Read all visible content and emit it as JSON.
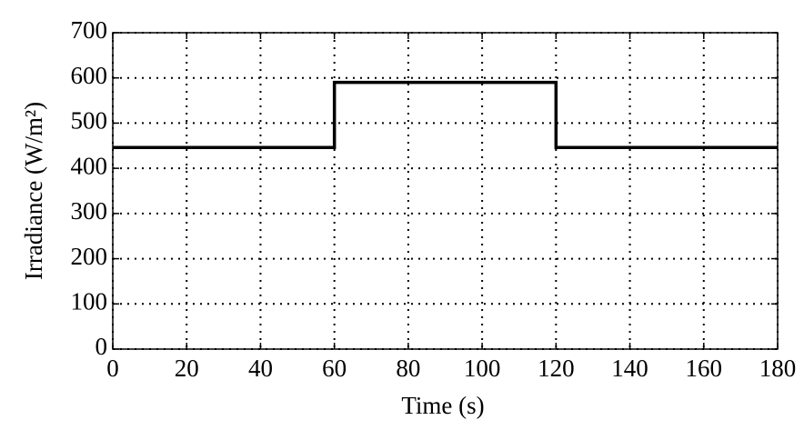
{
  "chart_data": {
    "type": "line",
    "x": [
      0,
      60,
      60,
      120,
      120,
      180
    ],
    "values": [
      446,
      446,
      590,
      590,
      446,
      446
    ],
    "color": "#000000",
    "xlabel": "Time (s)",
    "ylabel": "Irradiance (W/m²)",
    "xlim": [
      0,
      180
    ],
    "xticks": [
      0,
      20,
      40,
      60,
      80,
      100,
      120,
      140,
      160,
      180
    ],
    "ylim": [
      0,
      700
    ],
    "yticks": [
      0,
      100,
      200,
      300,
      400,
      500,
      600,
      700
    ],
    "grid": true
  }
}
